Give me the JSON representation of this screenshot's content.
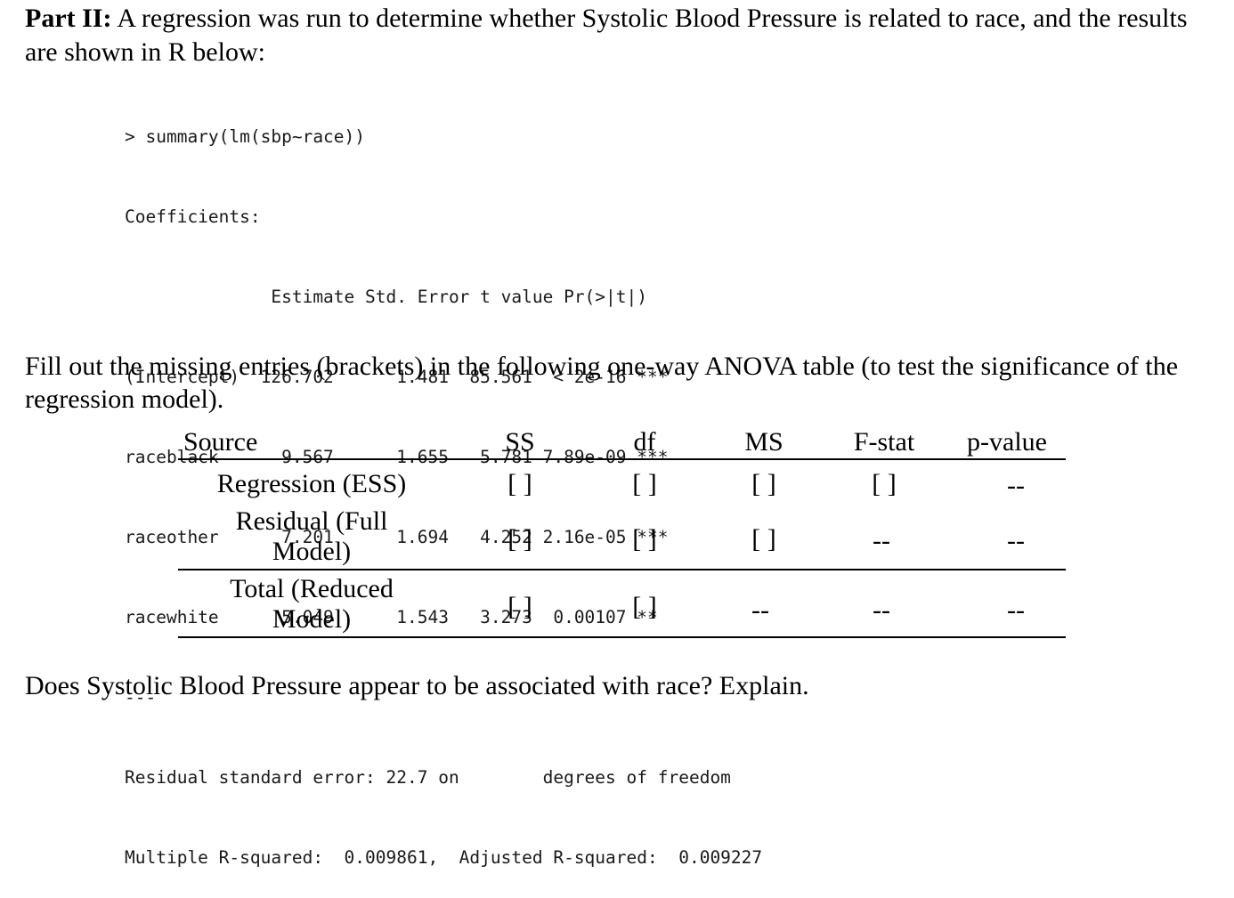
{
  "intro": {
    "part_label": "Part II:",
    "text": " A regression was run to determine whether Systolic Blood Pressure is related to race, and the results are shown in R below:"
  },
  "r_output": {
    "command": "> summary(lm(sbp~race))",
    "coef_heading": "Coefficients:",
    "col_header": "              Estimate Std. Error t value Pr(>|t|)",
    "rows": [
      "(Intercept)  126.702      1.481  85.561  < 2e-16 ***",
      "raceblack      9.567      1.655   5.781 7.89e-09 ***",
      "raceother      7.201      1.694   4.252 2.16e-05 ***",
      "racewhite      5.049      1.543   3.273  0.00107 **"
    ],
    "separator": "---",
    "residual_line": "Residual standard error: 22.7 on        degrees of freedom",
    "rsq_line": "Multiple R-squared:  0.009861,  Adjusted R-squared:  0.009227"
  },
  "question_fill": "Fill out the missing entries (brackets) in the following one-way ANOVA table (to test the significance of the regression model).",
  "anova": {
    "headers": [
      "Source",
      "SS",
      "df",
      "MS",
      "F-stat",
      "p-value"
    ],
    "rows": [
      {
        "source_l1": "Regression (ESS)",
        "source_l2": "",
        "ss": "[ ]",
        "df": "[ ]",
        "ms": "[ ]",
        "f": "[ ]",
        "p": "--"
      },
      {
        "source_l1": "Residual (Full",
        "source_l2": "Model)",
        "ss": "[ ]",
        "df": "[ ]",
        "ms": "[ ]",
        "f": "--",
        "p": "--"
      },
      {
        "source_l1": "Total (Reduced",
        "source_l2": "Model)",
        "ss": "[ ]",
        "df": "[ ]",
        "ms": "--",
        "f": "--",
        "p": "--"
      }
    ]
  },
  "question_final": "Does Systolic Blood Pressure appear to be associated with race? Explain."
}
